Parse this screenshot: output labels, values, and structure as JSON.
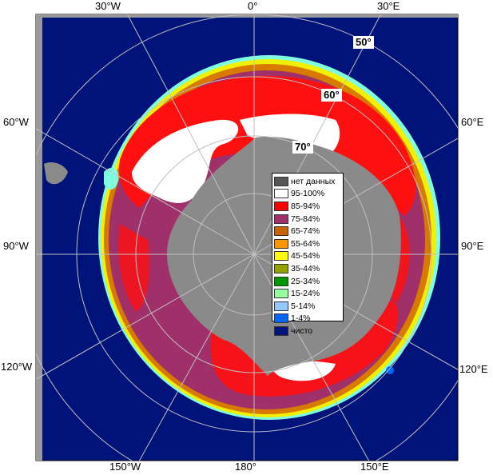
{
  "colors": {
    "ocean": "#00137a",
    "land": "#8a8a8a",
    "frame_bg": "#ffffff",
    "grid": "#c0c0c0",
    "ice_white": "#ffffff",
    "ice_red": "#ff1010",
    "ice_purple": "#a0306a",
    "ice_orange": "#d87a00",
    "ice_yellow": "#f0f000",
    "ice_cyan": "#80ffe0"
  },
  "longitude_labels": {
    "w30": "30°W",
    "zero": "0°",
    "e30": "30°E",
    "w60": "60°W",
    "e60": "60°E",
    "w90": "90°W",
    "e90": "90°E",
    "w120": "120°W",
    "e120": "120°E",
    "w150": "150°W",
    "deg180": "180°",
    "e150": "150°E"
  },
  "latitude_labels": {
    "lat50": "50°",
    "lat60": "60°",
    "lat70": "70°"
  },
  "legend": {
    "items": [
      {
        "label": "нет данных",
        "color": "#555555"
      },
      {
        "label": "95-100%",
        "color": "#ffffff"
      },
      {
        "label": "85-94%",
        "color": "#ff0000"
      },
      {
        "label": "75-84%",
        "color": "#a0306a"
      },
      {
        "label": "65-74%",
        "color": "#c86400"
      },
      {
        "label": "55-64%",
        "color": "#ff9600"
      },
      {
        "label": "45-54%",
        "color": "#ffff00"
      },
      {
        "label": "35-44%",
        "color": "#96a000"
      },
      {
        "label": "25-34%",
        "color": "#009600"
      },
      {
        "label": "15-24%",
        "color": "#96ffa0"
      },
      {
        "label": "5-14%",
        "color": "#96c8ff"
      },
      {
        "label": "1-4%",
        "color": "#0064ff"
      },
      {
        "label": "чисто",
        "color": "#00137a"
      }
    ]
  }
}
